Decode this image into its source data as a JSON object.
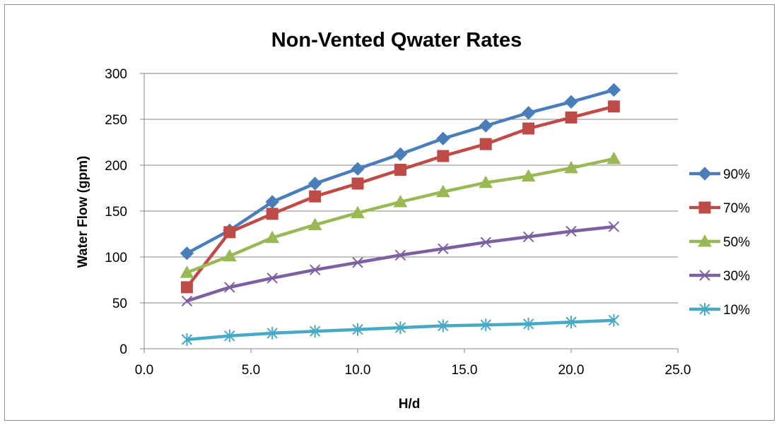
{
  "chart_data": {
    "type": "line",
    "title": "Non-Vented Qwater Rates",
    "xlabel": "H/d",
    "ylabel": "Water Flow (gpm)",
    "xlim": [
      0,
      25
    ],
    "ylim": [
      0,
      300
    ],
    "x_ticks": [
      "0.0",
      "5.0",
      "10.0",
      "15.0",
      "20.0",
      "25.0"
    ],
    "y_ticks": [
      "0",
      "50",
      "100",
      "150",
      "200",
      "250",
      "300"
    ],
    "grid": "horizontal",
    "legend_position": "right",
    "x": [
      2,
      4,
      6,
      8,
      10,
      12,
      14,
      16,
      18,
      20,
      22
    ],
    "series": [
      {
        "name": "90%",
        "color": "#4a7ebb",
        "marker": "diamond",
        "values": [
          104,
          129,
          160,
          180,
          196,
          212,
          229,
          243,
          257,
          269,
          282
        ]
      },
      {
        "name": "70%",
        "color": "#be4b48",
        "marker": "square",
        "values": [
          67,
          127,
          147,
          166,
          180,
          195,
          210,
          223,
          240,
          252,
          264
        ]
      },
      {
        "name": "50%",
        "color": "#98b954",
        "marker": "triangle",
        "values": [
          83,
          101,
          121,
          135,
          148,
          160,
          171,
          181,
          188,
          197,
          207
        ]
      },
      {
        "name": "30%",
        "color": "#7d60a0",
        "marker": "x",
        "values": [
          52,
          67,
          77,
          86,
          94,
          102,
          109,
          116,
          122,
          128,
          133
        ]
      },
      {
        "name": "10%",
        "color": "#46aac5",
        "marker": "star",
        "values": [
          10,
          14,
          17,
          19,
          21,
          23,
          25,
          26,
          27,
          29,
          31
        ]
      }
    ]
  }
}
